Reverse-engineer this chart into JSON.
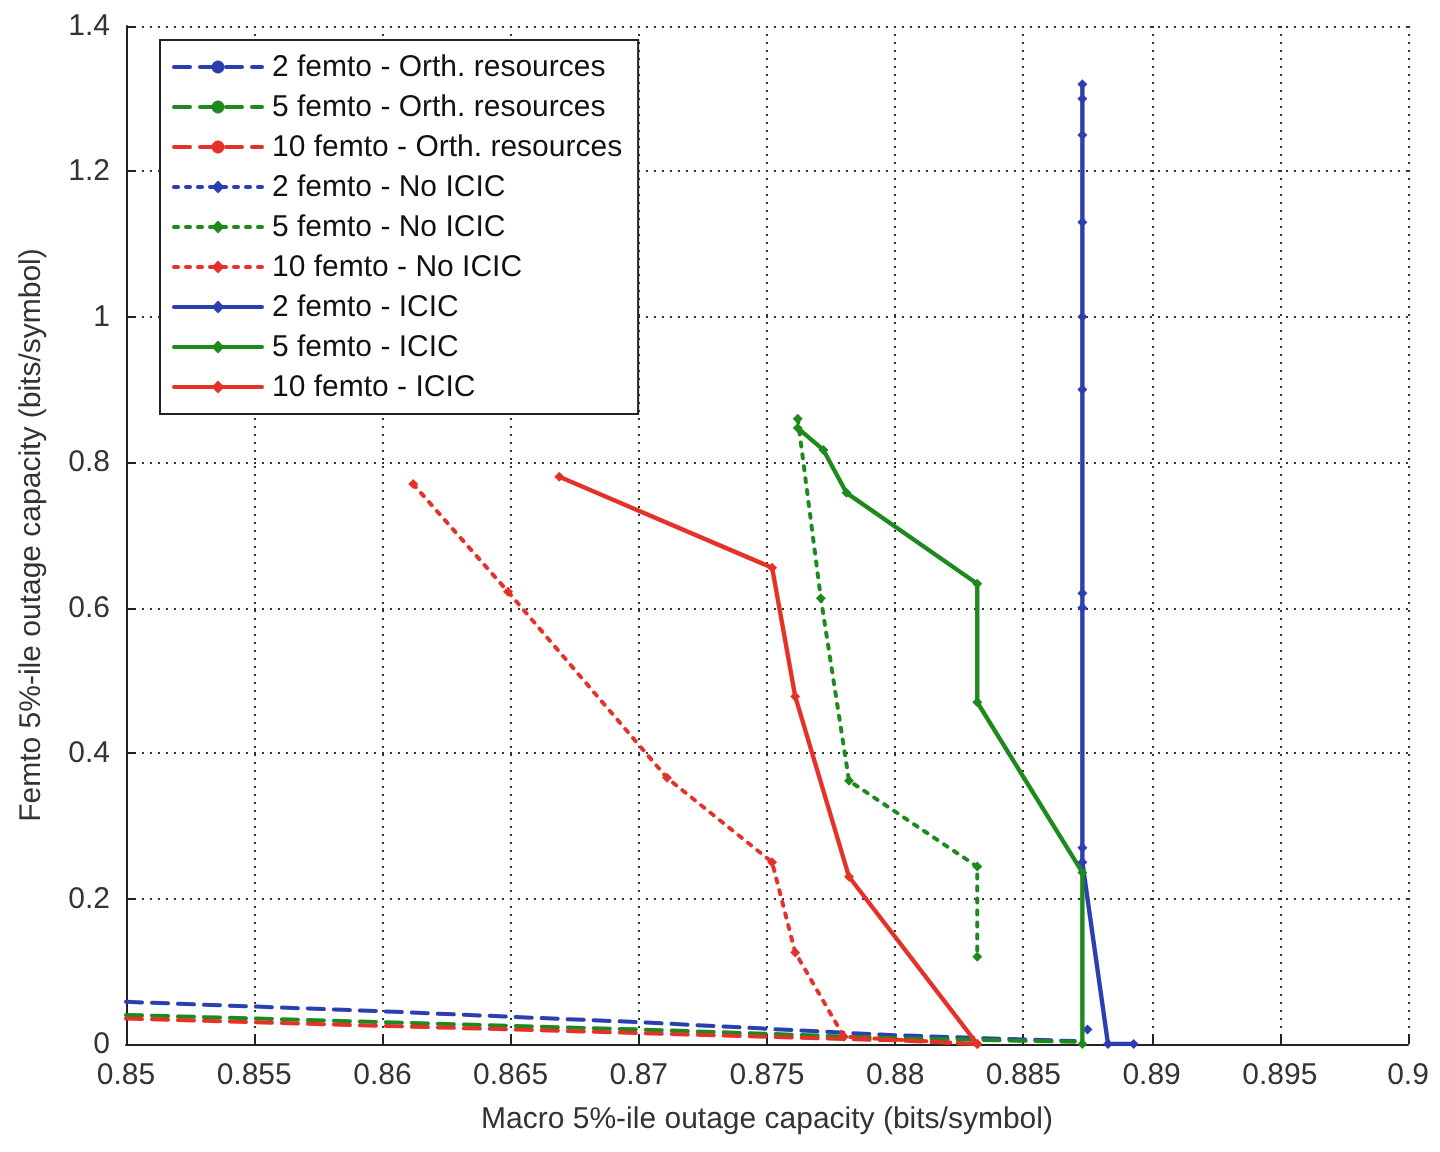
{
  "chart_data": {
    "type": "line",
    "xlabel": "Macro 5%-ile outage capacity (bits/symbol)",
    "ylabel": "Femto 5%-ile outage capacity (bits/symbol)",
    "xlim": [
      0.85,
      0.9
    ],
    "xticks": [
      0.85,
      0.855,
      0.86,
      0.865,
      0.87,
      0.875,
      0.88,
      0.885,
      0.89,
      0.895,
      0.9
    ],
    "ylim": [
      0,
      1.4
    ],
    "yticks": [
      0,
      0.2,
      0.4,
      0.6,
      0.8,
      1,
      1.2,
      1.4
    ],
    "grid": true,
    "legend": "top left",
    "series": [
      {
        "name": "2 femto - Orth. resources",
        "color": "#2c3fb0",
        "line_style": "dashed",
        "marker": "none",
        "x": [
          0.85,
          0.86,
          0.87,
          0.88,
          0.887
        ],
        "values": [
          0.058,
          0.045,
          0.03,
          0.012,
          0.004
        ]
      },
      {
        "name": "5 femto - Orth. resources",
        "color": "#1e8a1e",
        "line_style": "dashed",
        "marker": "none",
        "x": [
          0.85,
          0.86,
          0.87,
          0.88,
          0.887
        ],
        "values": [
          0.04,
          0.03,
          0.02,
          0.008,
          0.003
        ]
      },
      {
        "name": "10 femto - Orth. resources",
        "color": "#e53228",
        "line_style": "dashed",
        "marker": "none",
        "x": [
          0.85,
          0.86,
          0.87,
          0.88,
          0.883
        ],
        "values": [
          0.035,
          0.025,
          0.015,
          0.005,
          0
        ]
      },
      {
        "name": "2 femto - No ICIC",
        "color": "#2c3fb0",
        "line_style": "dotted",
        "marker": "diamond",
        "x": [
          0.8875
        ],
        "values": [
          0.02
        ]
      },
      {
        "name": "5 femto - No ICIC",
        "color": "#1e8a1e",
        "line_style": "dotted",
        "marker": "diamond",
        "x": [
          0.8762,
          0.8771,
          0.8782,
          0.8832,
          0.8832
        ],
        "values": [
          0.86,
          0.613,
          0.362,
          0.244,
          0.12
        ]
      },
      {
        "name": "10 femto - No ICIC",
        "color": "#e53228",
        "line_style": "dotted",
        "marker": "diamond",
        "x": [
          0.8612,
          0.8649,
          0.8711,
          0.8752,
          0.8761,
          0.878,
          0.8832
        ],
        "values": [
          0.77,
          0.622,
          0.366,
          0.25,
          0.126,
          0.01,
          0
        ]
      },
      {
        "name": "2 femto - ICIC",
        "color": "#2c3fb0",
        "line_style": "solid",
        "marker": "diamond",
        "x": [
          0.8873,
          0.8873,
          0.8873,
          0.8873,
          0.8873,
          0.8873,
          0.8873,
          0.8873,
          0.8873,
          0.8873,
          0.8883,
          0.8893
        ],
        "values": [
          1.32,
          1.3,
          1.25,
          1.13,
          1.0,
          0.9,
          0.62,
          0.6,
          0.27,
          0.25,
          0,
          0
        ]
      },
      {
        "name": "5 femto - ICIC",
        "color": "#1e8a1e",
        "line_style": "solid",
        "marker": "diamond",
        "x": [
          0.8762,
          0.8772,
          0.8781,
          0.8832,
          0.8832,
          0.8873,
          0.8873
        ],
        "values": [
          0.847,
          0.817,
          0.758,
          0.633,
          0.47,
          0.236,
          0
        ]
      },
      {
        "name": "10 femto - ICIC",
        "color": "#e53228",
        "line_style": "solid",
        "marker": "diamond",
        "x": [
          0.8669,
          0.8752,
          0.8761,
          0.8782,
          0.8832
        ],
        "values": [
          0.78,
          0.655,
          0.478,
          0.23,
          0
        ]
      }
    ]
  }
}
